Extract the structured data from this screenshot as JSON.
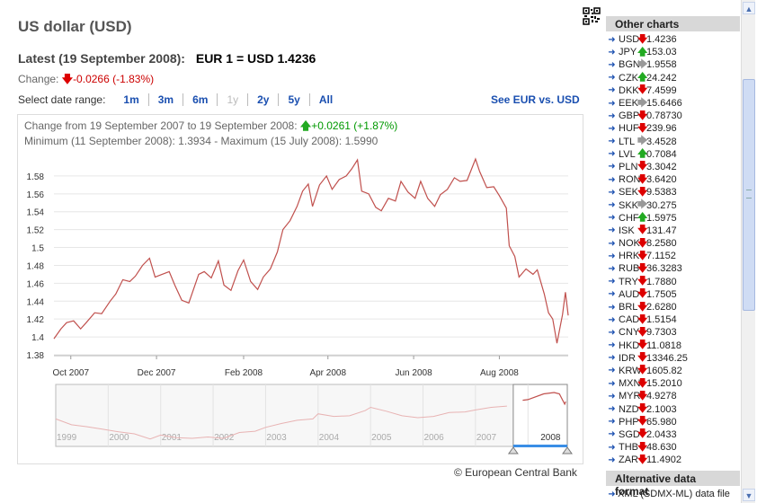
{
  "page": {
    "title": "US dollar (USD)"
  },
  "latest": {
    "label": "Latest (19 September 2008):",
    "rate": "EUR 1 = USD 1.4236"
  },
  "change": {
    "label": "Change:",
    "value": "-0.0266 (-1.83%)"
  },
  "date_range": {
    "label": "Select date range:",
    "options": [
      {
        "label": "1m",
        "enabled": true
      },
      {
        "label": "3m",
        "enabled": true
      },
      {
        "label": "6m",
        "enabled": true
      },
      {
        "label": "1y",
        "enabled": false
      },
      {
        "label": "2y",
        "enabled": true
      },
      {
        "label": "5y",
        "enabled": true
      },
      {
        "label": "All",
        "enabled": true
      }
    ],
    "see_link": "See EUR vs. USD"
  },
  "chart_info": {
    "change_label": "Change from 19 September 2007 to 19 September 2008:",
    "change_value": "+0.0261 (+1.87%)",
    "minmax": "Minimum (11 September 2008): 1.3934 - Maximum (15 July 2008): 1.5990"
  },
  "chart_data": {
    "type": "line",
    "title": "",
    "xlabel": "",
    "ylabel": "",
    "color": "#c0504d",
    "ylim": [
      1.38,
      1.6
    ],
    "yticks": [
      "1.38",
      "1.4",
      "1.42",
      "1.44",
      "1.46",
      "1.48",
      "1.5",
      "1.52",
      "1.54",
      "1.56",
      "1.58"
    ],
    "x_range": [
      "2007-09-19",
      "2008-09-19"
    ],
    "xticks": [
      {
        "date": "2007-10-01",
        "label": "Oct 2007"
      },
      {
        "date": "2007-12-01",
        "label": "Dec 2007"
      },
      {
        "date": "2008-02-01",
        "label": "Feb 2008"
      },
      {
        "date": "2008-04-01",
        "label": "Apr 2008"
      },
      {
        "date": "2008-06-01",
        "label": "Jun 2008"
      },
      {
        "date": "2008-08-01",
        "label": "Aug 2008"
      }
    ],
    "series": [
      {
        "points": [
          [
            "2007-09-19",
            1.398
          ],
          [
            "2007-09-24",
            1.409
          ],
          [
            "2007-09-28",
            1.416
          ],
          [
            "2007-10-03",
            1.418
          ],
          [
            "2007-10-08",
            1.409
          ],
          [
            "2007-10-12",
            1.416
          ],
          [
            "2007-10-18",
            1.427
          ],
          [
            "2007-10-23",
            1.426
          ],
          [
            "2007-10-29",
            1.44
          ],
          [
            "2007-11-02",
            1.448
          ],
          [
            "2007-11-07",
            1.464
          ],
          [
            "2007-11-12",
            1.462
          ],
          [
            "2007-11-16",
            1.468
          ],
          [
            "2007-11-21",
            1.48
          ],
          [
            "2007-11-26",
            1.488
          ],
          [
            "2007-11-30",
            1.467
          ],
          [
            "2007-12-05",
            1.47
          ],
          [
            "2007-12-10",
            1.473
          ],
          [
            "2007-12-14",
            1.458
          ],
          [
            "2007-12-19",
            1.441
          ],
          [
            "2007-12-24",
            1.438
          ],
          [
            "2007-12-31",
            1.47
          ],
          [
            "2008-01-04",
            1.473
          ],
          [
            "2008-01-09",
            1.466
          ],
          [
            "2008-01-14",
            1.485
          ],
          [
            "2008-01-18",
            1.458
          ],
          [
            "2008-01-23",
            1.452
          ],
          [
            "2008-01-28",
            1.474
          ],
          [
            "2008-02-01",
            1.486
          ],
          [
            "2008-02-06",
            1.462
          ],
          [
            "2008-02-11",
            1.453
          ],
          [
            "2008-02-15",
            1.467
          ],
          [
            "2008-02-20",
            1.476
          ],
          [
            "2008-02-25",
            1.495
          ],
          [
            "2008-02-29",
            1.52
          ],
          [
            "2008-03-05",
            1.53
          ],
          [
            "2008-03-10",
            1.546
          ],
          [
            "2008-03-14",
            1.563
          ],
          [
            "2008-03-18",
            1.571
          ],
          [
            "2008-03-21",
            1.546
          ],
          [
            "2008-03-26",
            1.57
          ],
          [
            "2008-03-31",
            1.58
          ],
          [
            "2008-04-04",
            1.565
          ],
          [
            "2008-04-09",
            1.576
          ],
          [
            "2008-04-14",
            1.58
          ],
          [
            "2008-04-18",
            1.588
          ],
          [
            "2008-04-22",
            1.598
          ],
          [
            "2008-04-25",
            1.563
          ],
          [
            "2008-04-30",
            1.56
          ],
          [
            "2008-05-05",
            1.545
          ],
          [
            "2008-05-09",
            1.541
          ],
          [
            "2008-05-14",
            1.555
          ],
          [
            "2008-05-19",
            1.552
          ],
          [
            "2008-05-23",
            1.574
          ],
          [
            "2008-05-28",
            1.562
          ],
          [
            "2008-06-02",
            1.555
          ],
          [
            "2008-06-06",
            1.574
          ],
          [
            "2008-06-11",
            1.555
          ],
          [
            "2008-06-16",
            1.546
          ],
          [
            "2008-06-20",
            1.559
          ],
          [
            "2008-06-25",
            1.565
          ],
          [
            "2008-06-30",
            1.578
          ],
          [
            "2008-07-04",
            1.574
          ],
          [
            "2008-07-09",
            1.575
          ],
          [
            "2008-07-15",
            1.599
          ],
          [
            "2008-07-18",
            1.585
          ],
          [
            "2008-07-23",
            1.567
          ],
          [
            "2008-07-28",
            1.568
          ],
          [
            "2008-08-01",
            1.558
          ],
          [
            "2008-08-06",
            1.544
          ],
          [
            "2008-08-08",
            1.502
          ],
          [
            "2008-08-12",
            1.49
          ],
          [
            "2008-08-15",
            1.467
          ],
          [
            "2008-08-20",
            1.476
          ],
          [
            "2008-08-25",
            1.47
          ],
          [
            "2008-08-28",
            1.475
          ],
          [
            "2008-09-02",
            1.448
          ],
          [
            "2008-09-05",
            1.427
          ],
          [
            "2008-09-08",
            1.42
          ],
          [
            "2008-09-11",
            1.393
          ],
          [
            "2008-09-15",
            1.425
          ],
          [
            "2008-09-17",
            1.45
          ],
          [
            "2008-09-19",
            1.424
          ]
        ]
      }
    ]
  },
  "navigator": {
    "years": [
      "1999",
      "2000",
      "2001",
      "2002",
      "2003",
      "2004",
      "2005",
      "2006",
      "2007",
      "2008"
    ],
    "range_label": "2008",
    "points": [
      [
        1999.0,
        1.17
      ],
      [
        1999.3,
        1.08
      ],
      [
        1999.6,
        1.05
      ],
      [
        1999.9,
        1.01
      ],
      [
        2000.2,
        0.97
      ],
      [
        2000.5,
        0.94
      ],
      [
        2000.8,
        0.86
      ],
      [
        2001.0,
        0.92
      ],
      [
        2001.3,
        0.88
      ],
      [
        2001.6,
        0.87
      ],
      [
        2001.9,
        0.89
      ],
      [
        2002.2,
        0.87
      ],
      [
        2002.5,
        0.96
      ],
      [
        2002.8,
        0.98
      ],
      [
        2003.0,
        1.04
      ],
      [
        2003.3,
        1.1
      ],
      [
        2003.6,
        1.15
      ],
      [
        2003.9,
        1.17
      ],
      [
        2004.0,
        1.25
      ],
      [
        2004.3,
        1.21
      ],
      [
        2004.6,
        1.22
      ],
      [
        2004.9,
        1.3
      ],
      [
        2005.0,
        1.35
      ],
      [
        2005.3,
        1.29
      ],
      [
        2005.6,
        1.22
      ],
      [
        2005.9,
        1.19
      ],
      [
        2006.2,
        1.21
      ],
      [
        2006.5,
        1.27
      ],
      [
        2006.8,
        1.28
      ],
      [
        2007.0,
        1.31
      ],
      [
        2007.3,
        1.35
      ],
      [
        2007.6,
        1.37
      ],
      [
        2007.9,
        1.46
      ],
      [
        2008.0,
        1.47
      ],
      [
        2008.3,
        1.56
      ],
      [
        2008.5,
        1.58
      ],
      [
        2008.6,
        1.56
      ],
      [
        2008.7,
        1.4
      ],
      [
        2008.72,
        1.44
      ]
    ]
  },
  "source": "© European Central Bank",
  "sidebar": {
    "other_charts_title": "Other charts",
    "currencies": [
      {
        "code": "USD",
        "dir": "down",
        "value": "1.4236"
      },
      {
        "code": "JPY",
        "dir": "up",
        "value": "153.03"
      },
      {
        "code": "BGN",
        "dir": "flat",
        "value": "1.9558"
      },
      {
        "code": "CZK",
        "dir": "up",
        "value": "24.242"
      },
      {
        "code": "DKK",
        "dir": "down",
        "value": "7.4599"
      },
      {
        "code": "EEK",
        "dir": "flat",
        "value": "15.6466"
      },
      {
        "code": "GBP",
        "dir": "down",
        "value": "0.78730"
      },
      {
        "code": "HUF",
        "dir": "down",
        "value": "239.96"
      },
      {
        "code": "LTL",
        "dir": "flat",
        "value": "3.4528"
      },
      {
        "code": "LVL",
        "dir": "up",
        "value": "0.7084"
      },
      {
        "code": "PLN",
        "dir": "down",
        "value": "3.3042"
      },
      {
        "code": "RON",
        "dir": "down",
        "value": "3.6420"
      },
      {
        "code": "SEK",
        "dir": "down",
        "value": "9.5383"
      },
      {
        "code": "SKK",
        "dir": "flat",
        "value": "30.275"
      },
      {
        "code": "CHF",
        "dir": "up",
        "value": "1.5975"
      },
      {
        "code": "ISK",
        "dir": "down",
        "value": "131.47"
      },
      {
        "code": "NOK",
        "dir": "down",
        "value": "8.2580"
      },
      {
        "code": "HRK",
        "dir": "down",
        "value": "7.1152"
      },
      {
        "code": "RUB",
        "dir": "down",
        "value": "36.3283"
      },
      {
        "code": "TRY",
        "dir": "down",
        "value": "1.7880"
      },
      {
        "code": "AUD",
        "dir": "down",
        "value": "1.7505"
      },
      {
        "code": "BRL",
        "dir": "down",
        "value": "2.6280"
      },
      {
        "code": "CAD",
        "dir": "down",
        "value": "1.5154"
      },
      {
        "code": "CNY",
        "dir": "down",
        "value": "9.7303"
      },
      {
        "code": "HKD",
        "dir": "down",
        "value": "11.0818"
      },
      {
        "code": "IDR",
        "dir": "down",
        "value": "13346.25"
      },
      {
        "code": "KRW",
        "dir": "down",
        "value": "1605.82"
      },
      {
        "code": "MXN",
        "dir": "down",
        "value": "15.2010"
      },
      {
        "code": "MYR",
        "dir": "down",
        "value": "4.9278"
      },
      {
        "code": "NZD",
        "dir": "down",
        "value": "2.1003"
      },
      {
        "code": "PHP",
        "dir": "down",
        "value": "65.980"
      },
      {
        "code": "SGD",
        "dir": "down",
        "value": "2.0433"
      },
      {
        "code": "THB",
        "dir": "down",
        "value": "48.630"
      },
      {
        "code": "ZAR",
        "dir": "down",
        "value": "11.4902"
      }
    ],
    "alt_format_title": "Alternative data format",
    "xml_link": "XML (SDMX-ML) data file"
  },
  "icons": {
    "qr": "qr-code-icon",
    "arrow": "arrow-right-icon"
  },
  "colors": {
    "link": "#1a4fb0",
    "negative": "#cc0000",
    "positive": "#009900",
    "line": "#c0504d"
  }
}
